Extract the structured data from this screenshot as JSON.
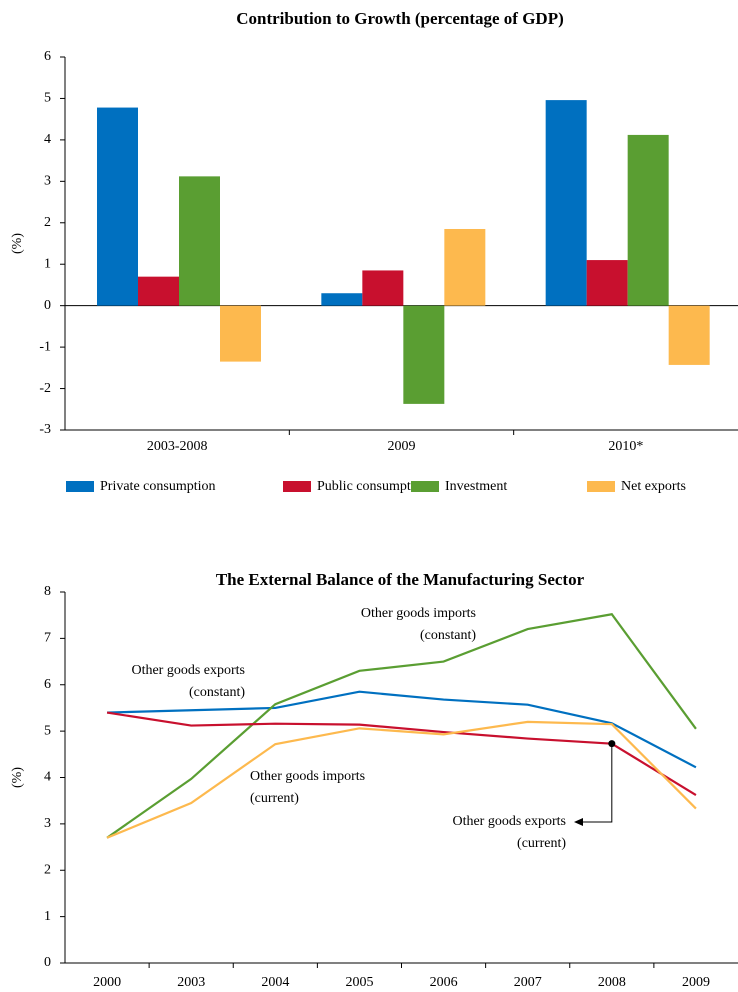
{
  "charts": [
    {
      "type": "bar",
      "title": "Contribution to Growth (percentage of GDP)",
      "y_label": "(%)",
      "categories": [
        "2003-2008",
        "2009",
        "2010*"
      ],
      "series": [
        {
          "name": "Private consumption",
          "color": "#0070c0",
          "values": [
            4.78,
            0.3,
            4.96
          ]
        },
        {
          "name": "Public consumption",
          "color": "#c8102e",
          "values": [
            0.7,
            0.85,
            1.1
          ]
        },
        {
          "name": "Investment",
          "color": "#5a9e32",
          "values": [
            3.12,
            -2.37,
            4.12
          ]
        },
        {
          "name": "Net exports",
          "color": "#fdb94e",
          "values": [
            -1.35,
            1.85,
            -1.43
          ]
        }
      ],
      "ylim": [
        -3,
        6
      ],
      "yticks": [
        -3,
        -2,
        -1,
        0,
        1,
        2,
        3,
        4,
        5,
        6
      ]
    },
    {
      "type": "line",
      "title": "The External Balance of the Manufacturing Sector",
      "y_label": "(%)",
      "categories": [
        "2000",
        "2003",
        "2004",
        "2005",
        "2006",
        "2007",
        "2008",
        "2009"
      ],
      "series": [
        {
          "label_lines": [
            "Other goods exports",
            "(constant)"
          ],
          "color": "#0070c0",
          "values": [
            5.4,
            5.45,
            5.5,
            5.85,
            5.68,
            5.57,
            5.17,
            4.22
          ]
        },
        {
          "label_lines": [
            "Other goods imports",
            "(constant)"
          ],
          "color": "#5a9e32",
          "values": [
            2.7,
            3.97,
            5.58,
            6.3,
            6.5,
            7.2,
            7.52,
            5.05
          ]
        },
        {
          "label_lines": [
            "Other goods exports",
            "(current)"
          ],
          "color": "#c8102e",
          "values": [
            5.4,
            5.12,
            5.16,
            5.14,
            4.98,
            4.84,
            4.73,
            3.62
          ]
        },
        {
          "label_lines": [
            "Other goods imports",
            "(current)"
          ],
          "color": "#fdb94e",
          "values": [
            2.7,
            3.45,
            4.72,
            5.06,
            4.93,
            5.2,
            5.15,
            3.33
          ]
        }
      ],
      "ylim": [
        0,
        8
      ],
      "yticks": [
        0,
        1,
        2,
        3,
        4,
        5,
        6,
        7,
        8
      ]
    }
  ]
}
